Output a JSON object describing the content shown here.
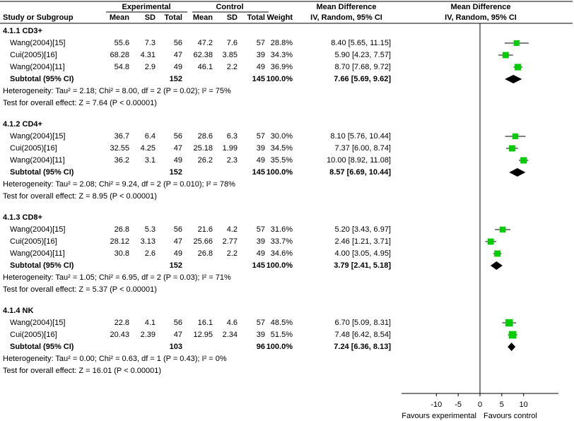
{
  "chart_data": {
    "type": "forest",
    "group_headers": [
      "Experimental",
      "Control",
      "Mean Difference",
      "Mean Difference"
    ],
    "columns": [
      "Study or Subgroup",
      "Mean",
      "SD",
      "Total",
      "Mean",
      "SD",
      "Total",
      "Weight",
      "IV, Random, 95% CI",
      "IV, Random, 95% CI"
    ],
    "xlim": [
      -18,
      18
    ],
    "xticks": [
      -10,
      -5,
      0,
      5,
      10
    ],
    "x_labels": [
      "Favours experimental",
      "Favours control"
    ],
    "marker_color": "#00cc00",
    "groups": [
      {
        "title": "4.1.1 CD3+",
        "studies": [
          {
            "name": "Wang(2004)[15]",
            "exp": [
              55.6,
              7.3,
              56
            ],
            "ctl": [
              47.2,
              7.6,
              57
            ],
            "weight": 28.8,
            "weight_label": "28.8%",
            "md": 8.4,
            "ci": [
              5.65,
              11.15
            ],
            "md_label": "8.40 [5.65, 11.15]"
          },
          {
            "name": "Cui(2005)[16]",
            "exp": [
              68.28,
              4.31,
              47
            ],
            "ctl": [
              62.38,
              3.85,
              39
            ],
            "weight": 34.3,
            "weight_label": "34.3%",
            "md": 5.9,
            "ci": [
              4.23,
              7.57
            ],
            "md_label": "5.90 [4.23, 7.57]"
          },
          {
            "name": "Wang(2004)[11]",
            "exp": [
              54.8,
              2.9,
              49
            ],
            "ctl": [
              46.1,
              2.2,
              49
            ],
            "weight": 36.9,
            "weight_label": "36.9%",
            "md": 8.7,
            "ci": [
              7.68,
              9.72
            ],
            "md_label": "8.70 [7.68, 9.72]"
          }
        ],
        "subtotal": {
          "name": "Subtotal (95% CI)",
          "exp_total": 152,
          "ctl_total": 145,
          "weight": 100,
          "weight_label": "100.0%",
          "md": 7.66,
          "ci": [
            5.69,
            9.62
          ],
          "md_label": "7.66 [5.69, 9.62]"
        },
        "heterogeneity": "Heterogeneity: Tau² = 2.18; Chi² = 8.00, df = 2 (P = 0.02); I² = 75%",
        "overall": "Test for overall effect: Z = 7.64 (P < 0.00001)"
      },
      {
        "title": "4.1.2 CD4+",
        "studies": [
          {
            "name": "Wang(2004)[15]",
            "exp": [
              36.7,
              6.4,
              56
            ],
            "ctl": [
              28.6,
              6.3,
              57
            ],
            "weight": 30.0,
            "weight_label": "30.0%",
            "md": 8.1,
            "ci": [
              5.76,
              10.44
            ],
            "md_label": "8.10 [5.76, 10.44]"
          },
          {
            "name": "Cui(2005)[16]",
            "exp": [
              32.55,
              4.25,
              47
            ],
            "ctl": [
              25.18,
              1.99,
              39
            ],
            "weight": 34.5,
            "weight_label": "34.5%",
            "md": 7.37,
            "ci": [
              6.0,
              8.74
            ],
            "md_label": "7.37 [6.00, 8.74]"
          },
          {
            "name": "Wang(2004)[11]",
            "exp": [
              36.2,
              3.1,
              49
            ],
            "ctl": [
              26.2,
              2.3,
              49
            ],
            "weight": 35.5,
            "weight_label": "35.5%",
            "md": 10.0,
            "ci": [
              8.92,
              11.08
            ],
            "md_label": "10.00 [8.92, 11.08]"
          }
        ],
        "subtotal": {
          "name": "Subtotal (95% CI)",
          "exp_total": 152,
          "ctl_total": 145,
          "weight": 100,
          "weight_label": "100.0%",
          "md": 8.57,
          "ci": [
            6.69,
            10.44
          ],
          "md_label": "8.57 [6.69, 10.44]"
        },
        "heterogeneity": "Heterogeneity: Tau² = 2.08; Chi² = 9.24, df = 2 (P = 0.010); I² = 78%",
        "overall": "Test for overall effect: Z = 8.95 (P < 0.00001)"
      },
      {
        "title": "4.1.3 CD8+",
        "studies": [
          {
            "name": "Wang(2004)[15]",
            "exp": [
              26.8,
              5.3,
              56
            ],
            "ctl": [
              21.6,
              4.2,
              57
            ],
            "weight": 31.6,
            "weight_label": "31.6%",
            "md": 5.2,
            "ci": [
              3.43,
              6.97
            ],
            "md_label": "5.20 [3.43, 6.97]"
          },
          {
            "name": "Cui(2005)[16]",
            "exp": [
              28.12,
              3.13,
              47
            ],
            "ctl": [
              25.66,
              2.77,
              39
            ],
            "weight": 33.7,
            "weight_label": "33.7%",
            "md": 2.46,
            "ci": [
              1.21,
              3.71
            ],
            "md_label": "2.46 [1.21, 3.71]"
          },
          {
            "name": "Wang(2004)[11]",
            "exp": [
              30.8,
              2.6,
              49
            ],
            "ctl": [
              26.8,
              2.2,
              49
            ],
            "weight": 34.6,
            "weight_label": "34.6%",
            "md": 4.0,
            "ci": [
              3.05,
              4.95
            ],
            "md_label": "4.00 [3.05, 4.95]"
          }
        ],
        "subtotal": {
          "name": "Subtotal (95% CI)",
          "exp_total": 152,
          "ctl_total": 145,
          "weight": 100,
          "weight_label": "100.0%",
          "md": 3.79,
          "ci": [
            2.41,
            5.18
          ],
          "md_label": "3.79 [2.41, 5.18]"
        },
        "heterogeneity": "Heterogeneity: Tau² = 1.05; Chi² = 6.95, df = 2 (P = 0.03); I² = 71%",
        "overall": "Test for overall effect: Z = 5.37 (P < 0.00001)"
      },
      {
        "title": "4.1.4 NK",
        "studies": [
          {
            "name": "Wang(2004)[15]",
            "exp": [
              22.8,
              4.1,
              56
            ],
            "ctl": [
              16.1,
              4.6,
              57
            ],
            "weight": 48.5,
            "weight_label": "48.5%",
            "md": 6.7,
            "ci": [
              5.09,
              8.31
            ],
            "md_label": "6.70 [5.09, 8.31]"
          },
          {
            "name": "Cui(2005)[16]",
            "exp": [
              20.43,
              2.39,
              47
            ],
            "ctl": [
              12.95,
              2.34,
              39
            ],
            "weight": 51.5,
            "weight_label": "51.5%",
            "md": 7.48,
            "ci": [
              6.42,
              8.54
            ],
            "md_label": "7.48 [6.42, 8.54]"
          }
        ],
        "subtotal": {
          "name": "Subtotal (95% CI)",
          "exp_total": 103,
          "ctl_total": 96,
          "weight": 100,
          "weight_label": "100.0%",
          "md": 7.24,
          "ci": [
            6.36,
            8.13
          ],
          "md_label": "7.24 [6.36, 8.13]"
        },
        "heterogeneity": "Heterogeneity: Tau² = 0.00; Chi² = 0.63, df = 1 (P = 0.43); I² = 0%",
        "overall": "Test for overall effect: Z = 16.01 (P < 0.00001)"
      }
    ]
  }
}
